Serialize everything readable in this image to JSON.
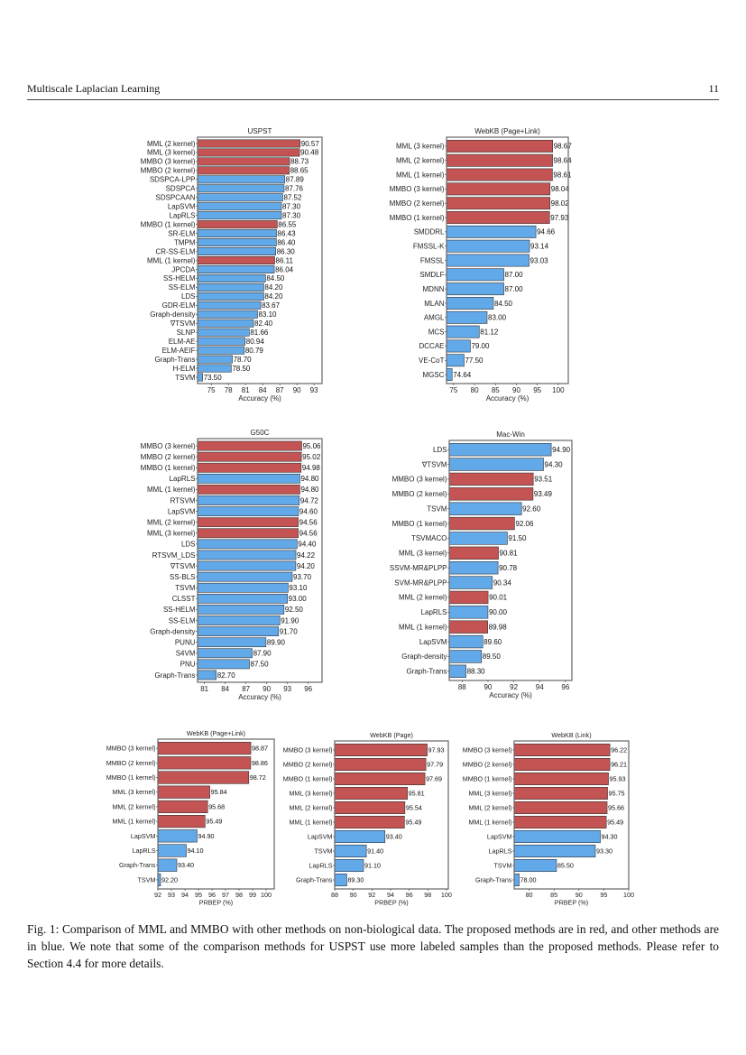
{
  "header": {
    "running_title": "Multiscale Laplacian Learning",
    "page_number": "11"
  },
  "colors": {
    "proposed": "#c45453",
    "other": "#62a9ea",
    "frame": "#666666"
  },
  "chart_data": [
    {
      "type": "bar",
      "orientation": "horizontal",
      "title": "USPST",
      "xlabel": "Accuracy (%)",
      "xlim": [
        72.6,
        94.4
      ],
      "xticks": [
        75,
        78,
        81,
        84,
        87,
        90,
        93
      ],
      "bars": [
        {
          "label": "MML (2 kernel)",
          "value": 90.57,
          "group": "proposed"
        },
        {
          "label": "MML (3 kernel)",
          "value": 90.48,
          "group": "proposed"
        },
        {
          "label": "MMBO (3 kernel)",
          "value": 88.73,
          "group": "proposed"
        },
        {
          "label": "MMBO (2 kernel)",
          "value": 88.65,
          "group": "proposed"
        },
        {
          "label": "SDSPCA-LPP",
          "value": 87.89,
          "group": "other"
        },
        {
          "label": "SDSPCA",
          "value": 87.76,
          "group": "other"
        },
        {
          "label": "SDSPCAAN",
          "value": 87.52,
          "group": "other"
        },
        {
          "label": "LapSVM",
          "value": 87.3,
          "group": "other"
        },
        {
          "label": "LapRLS",
          "value": 87.3,
          "group": "other"
        },
        {
          "label": "MMBO (1 kernel)",
          "value": 86.55,
          "group": "proposed"
        },
        {
          "label": "SR-ELM",
          "value": 86.43,
          "group": "other"
        },
        {
          "label": "TMPM",
          "value": 86.4,
          "group": "other"
        },
        {
          "label": "CR-SS-ELM",
          "value": 86.3,
          "group": "other"
        },
        {
          "label": "MML (1 kernel)",
          "value": 86.11,
          "group": "proposed"
        },
        {
          "label": "JPCDA",
          "value": 86.04,
          "group": "other"
        },
        {
          "label": "SS-HELM",
          "value": 84.5,
          "group": "other"
        },
        {
          "label": "SS-ELM",
          "value": 84.2,
          "group": "other"
        },
        {
          "label": "LDS",
          "value": 84.2,
          "group": "other"
        },
        {
          "label": "GDR-ELM",
          "value": 83.67,
          "group": "other"
        },
        {
          "label": "Graph-density",
          "value": 83.1,
          "group": "other"
        },
        {
          "label": "∇TSVM",
          "value": 82.4,
          "group": "other"
        },
        {
          "label": "SLNP",
          "value": 81.66,
          "group": "other"
        },
        {
          "label": "ELM-AE",
          "value": 80.94,
          "group": "other"
        },
        {
          "label": "ELM-AEIF",
          "value": 80.79,
          "group": "other"
        },
        {
          "label": "Graph-Trans",
          "value": 78.7,
          "group": "other"
        },
        {
          "label": "H-ELM",
          "value": 78.5,
          "group": "other"
        },
        {
          "label": "TSVM",
          "value": 73.5,
          "group": "other"
        }
      ]
    },
    {
      "type": "bar",
      "orientation": "horizontal",
      "title": "WebKB (Page+Link)",
      "xlabel": "Accuracy (%)",
      "xlim": [
        73.3,
        102.4
      ],
      "xticks": [
        75,
        80,
        85,
        90,
        95,
        100
      ],
      "bars": [
        {
          "label": "MML (3 kernel)",
          "value": 98.67,
          "group": "proposed"
        },
        {
          "label": "MML (2 kernel)",
          "value": 98.64,
          "group": "proposed"
        },
        {
          "label": "MML (1 kernel)",
          "value": 98.61,
          "group": "proposed"
        },
        {
          "label": "MMBO (3 kernel)",
          "value": 98.04,
          "group": "proposed"
        },
        {
          "label": "MMBO (2 kernel)",
          "value": 98.02,
          "group": "proposed"
        },
        {
          "label": "MMBO (1 kernel)",
          "value": 97.93,
          "group": "proposed"
        },
        {
          "label": "SMDDRL",
          "value": 94.66,
          "group": "other"
        },
        {
          "label": "FMSSL-K",
          "value": 93.14,
          "group": "other"
        },
        {
          "label": "FMSSL",
          "value": 93.03,
          "group": "other"
        },
        {
          "label": "SMDLF",
          "value": 87.0,
          "group": "other"
        },
        {
          "label": "MDNN",
          "value": 87.0,
          "group": "other"
        },
        {
          "label": "MLAN",
          "value": 84.5,
          "group": "other"
        },
        {
          "label": "AMGL",
          "value": 83.0,
          "group": "other"
        },
        {
          "label": "MCS",
          "value": 81.12,
          "group": "other"
        },
        {
          "label": "DCCAE",
          "value": 79.0,
          "group": "other"
        },
        {
          "label": "VE-CoT",
          "value": 77.5,
          "group": "other"
        },
        {
          "label": "MGSC",
          "value": 74.64,
          "group": "other"
        }
      ]
    },
    {
      "type": "bar",
      "orientation": "horizontal",
      "title": "G50C",
      "xlabel": "Accuracy (%)",
      "xlim": [
        80,
        98
      ],
      "xticks": [
        81,
        84,
        87,
        90,
        93,
        96
      ],
      "bars": [
        {
          "label": "MMBO (3 kernel)",
          "value": 95.06,
          "group": "proposed"
        },
        {
          "label": "MMBO (2 kernel)",
          "value": 95.02,
          "group": "proposed"
        },
        {
          "label": "MMBO (1 kernel)",
          "value": 94.98,
          "group": "proposed"
        },
        {
          "label": "LapRLS",
          "value": 94.8,
          "group": "other"
        },
        {
          "label": "MML (1 kernel)",
          "value": 94.8,
          "group": "proposed"
        },
        {
          "label": "RTSVM",
          "value": 94.72,
          "group": "other"
        },
        {
          "label": "LapSVM",
          "value": 94.6,
          "group": "other"
        },
        {
          "label": "MML (2 kernel)",
          "value": 94.56,
          "group": "proposed"
        },
        {
          "label": "MML (3 kernel)",
          "value": 94.56,
          "group": "proposed"
        },
        {
          "label": "LDS",
          "value": 94.4,
          "group": "other"
        },
        {
          "label": "RTSVM_LDS",
          "value": 94.22,
          "group": "other"
        },
        {
          "label": "∇TSVM",
          "value": 94.2,
          "group": "other"
        },
        {
          "label": "SS-BLS",
          "value": 93.7,
          "group": "other"
        },
        {
          "label": "TSVM",
          "value": 93.1,
          "group": "other"
        },
        {
          "label": "CLSST",
          "value": 93.0,
          "group": "other"
        },
        {
          "label": "SS-HELM",
          "value": 92.5,
          "group": "other"
        },
        {
          "label": "SS-ELM",
          "value": 91.9,
          "group": "other"
        },
        {
          "label": "Graph-density",
          "value": 91.7,
          "group": "other"
        },
        {
          "label": "PUNU",
          "value": 89.9,
          "group": "other"
        },
        {
          "label": "S4VM",
          "value": 87.9,
          "group": "other"
        },
        {
          "label": "PNU",
          "value": 87.5,
          "group": "other"
        },
        {
          "label": "Graph-Trans",
          "value": 82.7,
          "group": "other"
        }
      ]
    },
    {
      "type": "bar",
      "orientation": "horizontal",
      "title": "Mac-Win",
      "xlabel": "Accuracy (%)",
      "xlim": [
        87.0,
        96.5
      ],
      "xticks": [
        88,
        90,
        92,
        94,
        96
      ],
      "bars": [
        {
          "label": "LDS",
          "value": 94.9,
          "group": "other"
        },
        {
          "label": "∇TSVM",
          "value": 94.3,
          "group": "other"
        },
        {
          "label": "MMBO (3 kernel)",
          "value": 93.51,
          "group": "proposed"
        },
        {
          "label": "MMBO (2 kernel)",
          "value": 93.49,
          "group": "proposed"
        },
        {
          "label": "TSVM",
          "value": 92.6,
          "group": "other"
        },
        {
          "label": "MMBO (1 kernel)",
          "value": 92.06,
          "group": "proposed"
        },
        {
          "label": "TSVMACO",
          "value": 91.5,
          "group": "other"
        },
        {
          "label": "MML (3 kernel)",
          "value": 90.81,
          "group": "proposed"
        },
        {
          "label": "SSVM-MR&PLPP",
          "value": 90.78,
          "group": "other"
        },
        {
          "label": "SVM-MR&PLPP",
          "value": 90.34,
          "group": "other"
        },
        {
          "label": "MML (2 kernel)",
          "value": 90.01,
          "group": "proposed"
        },
        {
          "label": "LapRLS",
          "value": 90.0,
          "group": "other"
        },
        {
          "label": "MML (1 kernel)",
          "value": 89.98,
          "group": "proposed"
        },
        {
          "label": "LapSVM",
          "value": 89.6,
          "group": "other"
        },
        {
          "label": "Graph-density",
          "value": 89.5,
          "group": "other"
        },
        {
          "label": "Graph-Trans",
          "value": 88.3,
          "group": "other"
        }
      ]
    },
    {
      "type": "bar",
      "orientation": "horizontal",
      "title": "WebKB (Page+Link)",
      "xlabel": "PRBEP (%)",
      "xlim": [
        92,
        100.6
      ],
      "xticks": [
        92,
        93,
        94,
        95,
        96,
        97,
        98,
        99,
        100
      ],
      "bars": [
        {
          "label": "MMBO (3 kernel)",
          "value": 98.87,
          "group": "proposed"
        },
        {
          "label": "MMBO (2 kernel)",
          "value": 98.86,
          "group": "proposed"
        },
        {
          "label": "MMBO (1 kernel)",
          "value": 98.72,
          "group": "proposed"
        },
        {
          "label": "MML (3 kernel)",
          "value": 95.84,
          "group": "proposed"
        },
        {
          "label": "MML (2 kernel)",
          "value": 95.68,
          "group": "proposed"
        },
        {
          "label": "MML (1 kernel)",
          "value": 95.49,
          "group": "proposed"
        },
        {
          "label": "LapSVM",
          "value": 94.9,
          "group": "other"
        },
        {
          "label": "LapRLS",
          "value": 94.1,
          "group": "other"
        },
        {
          "label": "Graph-Trans",
          "value": 93.4,
          "group": "other"
        },
        {
          "label": "TSVM",
          "value": 92.2,
          "group": "other"
        }
      ]
    },
    {
      "type": "bar",
      "orientation": "horizontal",
      "title": "WebKB (Page)",
      "xlabel": "PRBEP (%)",
      "xlim": [
        88,
        100.2
      ],
      "xticks": [
        88,
        90,
        92,
        94,
        96,
        98,
        100
      ],
      "bars": [
        {
          "label": "MMBO (3 kernel)",
          "value": 97.93,
          "group": "proposed"
        },
        {
          "label": "MMBO (2 kernel)",
          "value": 97.79,
          "group": "proposed"
        },
        {
          "label": "MMBO (1 kernel)",
          "value": 97.69,
          "group": "proposed"
        },
        {
          "label": "MML (3 kernel)",
          "value": 95.81,
          "group": "proposed"
        },
        {
          "label": "MML (2 kernel)",
          "value": 95.54,
          "group": "proposed"
        },
        {
          "label": "MML (1 kernel)",
          "value": 95.49,
          "group": "proposed"
        },
        {
          "label": "LapSVM",
          "value": 93.4,
          "group": "other"
        },
        {
          "label": "TSVM",
          "value": 91.4,
          "group": "other"
        },
        {
          "label": "LapRLS",
          "value": 91.1,
          "group": "other"
        },
        {
          "label": "Graph-Trans",
          "value": 89.3,
          "group": "other"
        }
      ]
    },
    {
      "type": "bar",
      "orientation": "horizontal",
      "title": "WebKB (Link)",
      "xlabel": "PRBEP (%)",
      "xlim": [
        77,
        100
      ],
      "xticks": [
        80,
        85,
        90,
        95,
        100
      ],
      "bars": [
        {
          "label": "MMBO (3 kernel)",
          "value": 96.22,
          "group": "proposed"
        },
        {
          "label": "MMBO (2 kernel)",
          "value": 96.21,
          "group": "proposed"
        },
        {
          "label": "MMBO (1 kernel)",
          "value": 95.93,
          "group": "proposed"
        },
        {
          "label": "MML (3 kernel)",
          "value": 95.75,
          "group": "proposed"
        },
        {
          "label": "MML (2 kernel)",
          "value": 95.66,
          "group": "proposed"
        },
        {
          "label": "MML (1 kernel)",
          "value": 95.49,
          "group": "proposed"
        },
        {
          "label": "LapSVM",
          "value": 94.3,
          "group": "other"
        },
        {
          "label": "LapRLS",
          "value": 93.3,
          "group": "other"
        },
        {
          "label": "TSVM",
          "value": 85.5,
          "group": "other"
        },
        {
          "label": "Graph-Trans",
          "value": 78.0,
          "group": "other"
        }
      ]
    }
  ],
  "caption": "Fig. 1: Comparison of MML and MMBO with other methods on non-biological data. The proposed methods are in red, and other methods are in blue. We note that some of the comparison methods for USPST use more labeled samples than the proposed methods. Please refer to Section 4.4 for more details."
}
